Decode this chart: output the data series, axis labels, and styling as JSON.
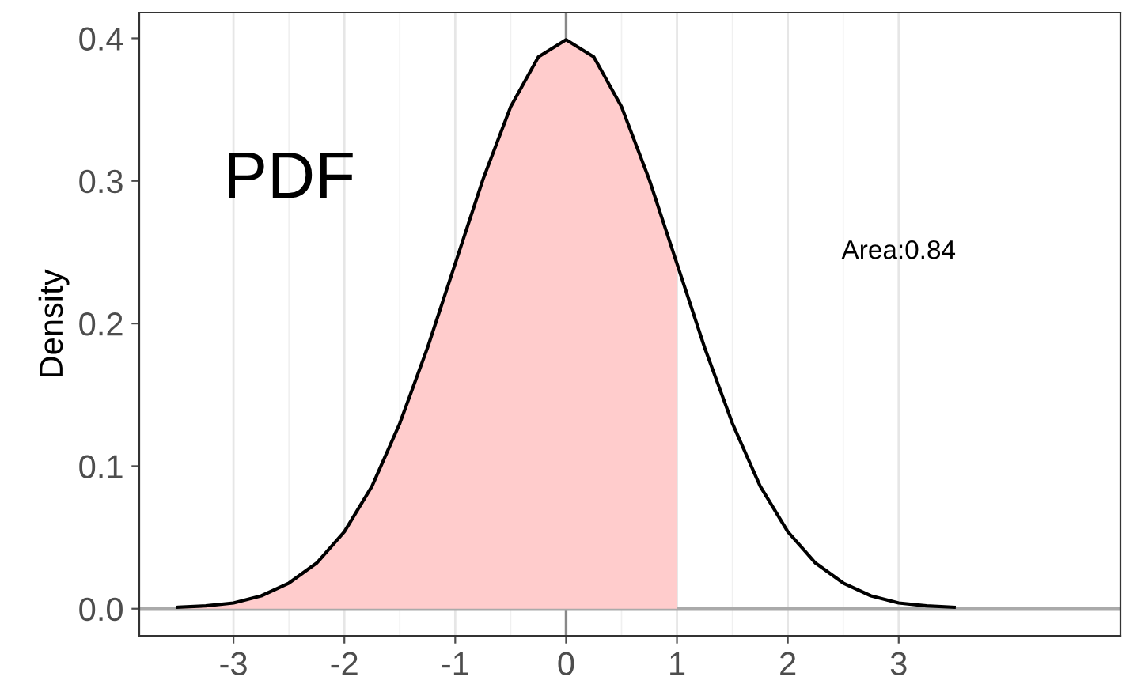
{
  "chart_data": {
    "type": "line",
    "ylabel": "Density",
    "series": [
      {
        "type": "area",
        "color": "#ffcccc",
        "x": [
          -3.5,
          -3.25,
          -3,
          -2.75,
          -2.5,
          -2.25,
          -2,
          -1.75,
          -1.5,
          -1.25,
          -1,
          -0.75,
          -0.5,
          -0.25,
          0,
          0.25,
          0.5,
          0.75,
          1
        ],
        "values": [
          0.001,
          0.002,
          0.004,
          0.009,
          0.018,
          0.032,
          0.054,
          0.086,
          0.13,
          0.183,
          0.242,
          0.301,
          0.352,
          0.387,
          0.399,
          0.387,
          0.352,
          0.301,
          0.242
        ]
      },
      {
        "color": "#000000",
        "x": [
          -3.5,
          -3.25,
          -3,
          -2.75,
          -2.5,
          -2.25,
          -2,
          -1.75,
          -1.5,
          -1.25,
          -1,
          -0.75,
          -0.5,
          -0.25,
          0,
          0.25,
          0.5,
          0.75,
          1,
          1.25,
          1.5,
          1.75,
          2,
          2.25,
          2.5,
          2.75,
          3,
          3.25,
          3.5
        ],
        "values": [
          0.001,
          0.002,
          0.004,
          0.009,
          0.018,
          0.032,
          0.054,
          0.086,
          0.13,
          0.183,
          0.242,
          0.301,
          0.352,
          0.387,
          0.399,
          0.387,
          0.352,
          0.301,
          0.242,
          0.183,
          0.13,
          0.086,
          0.054,
          0.032,
          0.018,
          0.009,
          0.004,
          0.002,
          0.001
        ]
      }
    ],
    "xlim": [
      -3.85,
      5.0
    ],
    "xticks": [
      -3,
      -2,
      -1,
      0,
      1,
      2,
      3
    ],
    "ylim": [
      -0.019,
      0.418
    ],
    "yticks": [
      {
        "value": 0,
        "label": "0.0"
      },
      0.1,
      0.2,
      0.3,
      0.4
    ],
    "grid": "x",
    "ref_lines": [
      {
        "axis": "x",
        "value": 0,
        "color": "#888888"
      },
      {
        "axis": "y",
        "value": 0,
        "color": "#aaaaaa"
      }
    ],
    "annotations": [
      "PDF",
      "Area:0.84"
    ]
  }
}
